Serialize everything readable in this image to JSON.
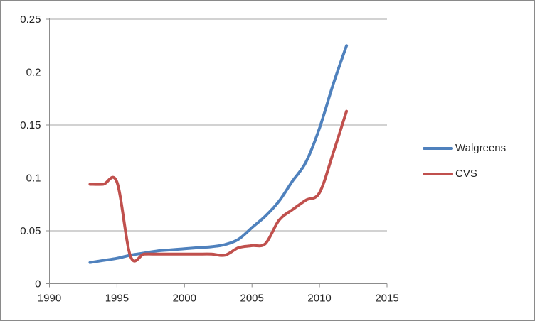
{
  "window": {
    "background": "#ffffff",
    "border_color": "#8a8a8a"
  },
  "chart_data": {
    "type": "line",
    "title": "",
    "xlabel": "",
    "ylabel": "",
    "x": [
      1993,
      1994,
      1995,
      1996,
      1997,
      1998,
      1999,
      2000,
      2001,
      2002,
      2003,
      2004,
      2005,
      2006,
      2007,
      2008,
      2009,
      2010,
      2011,
      2012
    ],
    "series": [
      {
        "name": "Walgreens",
        "color": "#4F81BD",
        "values": [
          0.02,
          0.022,
          0.024,
          0.027,
          0.029,
          0.031,
          0.032,
          0.033,
          0.034,
          0.035,
          0.037,
          0.042,
          0.053,
          0.064,
          0.078,
          0.097,
          0.115,
          0.147,
          0.188,
          0.225
        ]
      },
      {
        "name": "CVS",
        "color": "#C0504D",
        "values": [
          0.094,
          0.094,
          0.096,
          0.026,
          0.028,
          0.028,
          0.028,
          0.028,
          0.028,
          0.028,
          0.027,
          0.034,
          0.036,
          0.038,
          0.06,
          0.07,
          0.079,
          0.086,
          0.123,
          0.163
        ]
      }
    ],
    "xlim": [
      1990,
      2015
    ],
    "ylim": [
      0,
      0.25
    ],
    "x_tick_labels": [
      "1990",
      "1995",
      "2000",
      "2005",
      "2010",
      "2015"
    ],
    "y_tick_labels": [
      "0",
      "0.05",
      "0.1",
      "0.15",
      "0.2",
      "0.25"
    ],
    "grid": "horizontal",
    "smooth": true,
    "line_width": 4,
    "legend_position": "right",
    "gridline_color": "#A6A6A6",
    "axis_color": "#8C8C8C",
    "tick_label_color": "#242424",
    "tick_label_font_size": 15
  }
}
